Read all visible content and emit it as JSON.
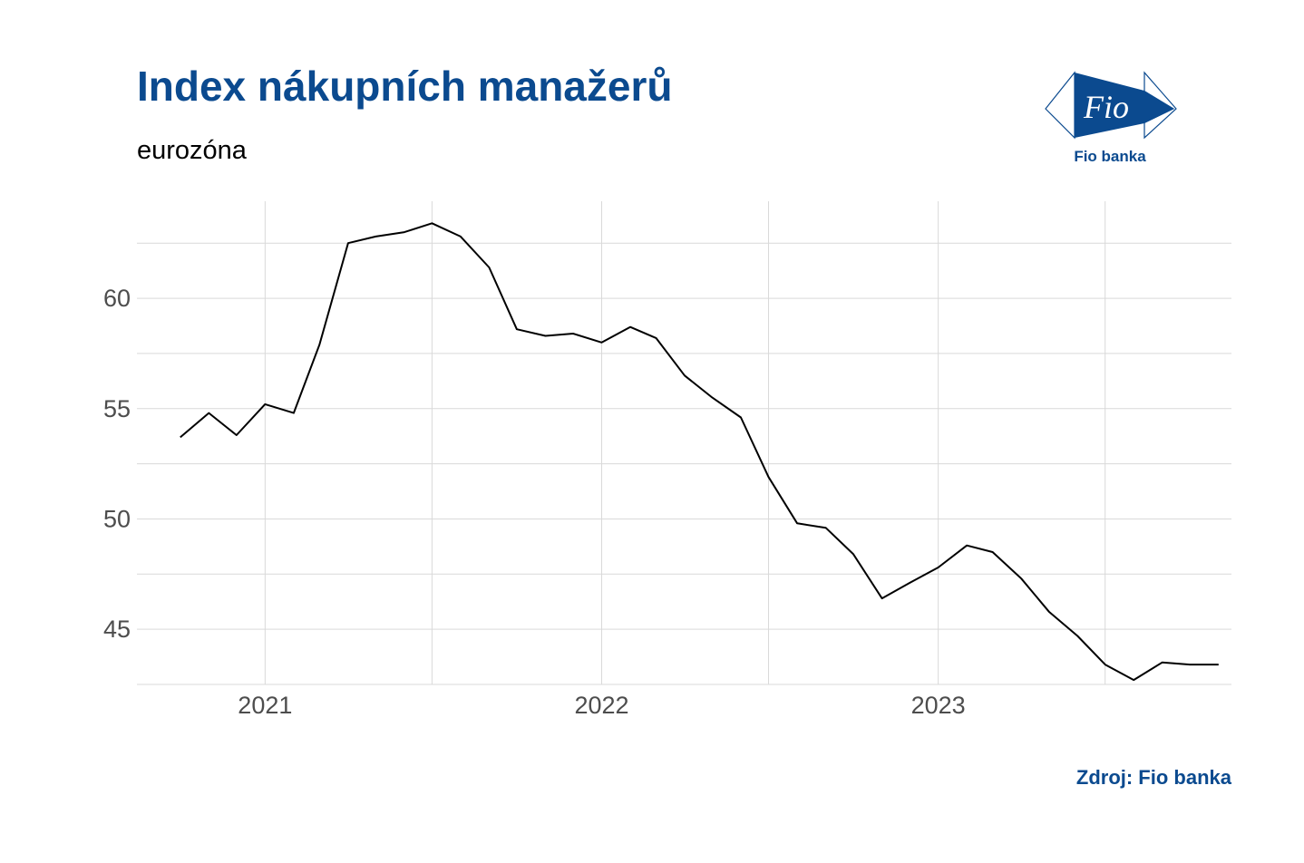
{
  "title": "Index nákupních manažerů",
  "subtitle": "eurozóna",
  "source": "Zdroj: Fio banka",
  "logo": {
    "text": "Fio banka",
    "mark_text": "Fio",
    "icon": "fio-banka-logo"
  },
  "colors": {
    "title": "#0b4a8f",
    "line": "#000000",
    "grid": "#d9d9d9",
    "tick": "#4d4d4d"
  },
  "chart_data": {
    "type": "line",
    "title": "Index nákupních manažerů",
    "subtitle": "eurozóna",
    "xlabel": "",
    "ylabel": "",
    "x_ticks": [
      "2021",
      "2022",
      "2023"
    ],
    "y_ticks": [
      45,
      50,
      55,
      60
    ],
    "xlim": [
      "2020-08-15",
      "2023-11-15"
    ],
    "ylim": [
      42.5,
      64.4
    ],
    "grid": true,
    "legend": "none",
    "series": [
      {
        "x": [
          "2020-10-01",
          "2020-11-01",
          "2020-12-01",
          "2021-01-01",
          "2021-02-01",
          "2021-03-01",
          "2021-04-01",
          "2021-05-01",
          "2021-06-01",
          "2021-07-01",
          "2021-08-01",
          "2021-09-01",
          "2021-10-01",
          "2021-11-01",
          "2021-12-01",
          "2022-01-01",
          "2022-02-01",
          "2022-03-01",
          "2022-04-01",
          "2022-05-01",
          "2022-06-01",
          "2022-07-01",
          "2022-08-01",
          "2022-09-01",
          "2022-10-01",
          "2022-11-01",
          "2022-12-01",
          "2023-01-01",
          "2023-02-01",
          "2023-03-01",
          "2023-04-01",
          "2023-05-01",
          "2023-06-01",
          "2023-07-01",
          "2023-08-01",
          "2023-09-01",
          "2023-10-01",
          "2023-11-01"
        ],
        "values": [
          53.7,
          54.8,
          53.8,
          55.2,
          54.8,
          57.9,
          62.5,
          62.8,
          63.0,
          63.4,
          62.8,
          61.4,
          58.6,
          58.3,
          58.4,
          58.0,
          58.7,
          58.2,
          56.5,
          55.5,
          54.6,
          51.9,
          49.8,
          49.6,
          48.4,
          46.4,
          47.1,
          47.8,
          48.8,
          48.5,
          47.3,
          45.8,
          44.7,
          43.4,
          42.7,
          43.5,
          43.4,
          43.4
        ]
      }
    ]
  }
}
